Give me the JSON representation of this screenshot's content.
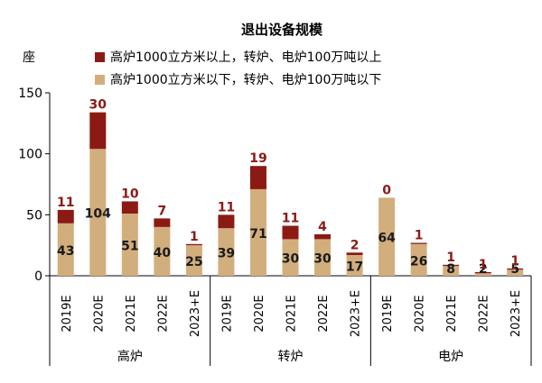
{
  "chart_data": {
    "type": "bar",
    "stacked": true,
    "title": "退出设备规模",
    "ylabel": "座",
    "ylim": [
      0,
      150
    ],
    "yticks": [
      0,
      50,
      100,
      150
    ],
    "legend_position": "top",
    "grid": false,
    "groups": [
      {
        "name": "高炉",
        "categories": [
          "2019E",
          "2020E",
          "2021E",
          "2022E",
          "2023+E"
        ]
      },
      {
        "name": "转炉",
        "categories": [
          "2019E",
          "2020E",
          "2021E",
          "2022E",
          "2023+E"
        ]
      },
      {
        "name": "电炉",
        "categories": [
          "2019E",
          "2020E",
          "2021E",
          "2022E",
          "2023+E"
        ]
      }
    ],
    "series": [
      {
        "name": "高炉1000立方米以下，转炉、电炉100万吨以下",
        "color": "#D2AE7D",
        "values": [
          43,
          104,
          51,
          40,
          25,
          39,
          71,
          30,
          30,
          17,
          64,
          26,
          8,
          2,
          5
        ]
      },
      {
        "name": "高炉1000立方米以上，转炉、电炉100万吨以上",
        "color": "#8B1A14",
        "values": [
          11,
          30,
          10,
          7,
          1,
          11,
          19,
          11,
          4,
          2,
          0,
          1,
          1,
          1,
          1
        ]
      }
    ]
  }
}
